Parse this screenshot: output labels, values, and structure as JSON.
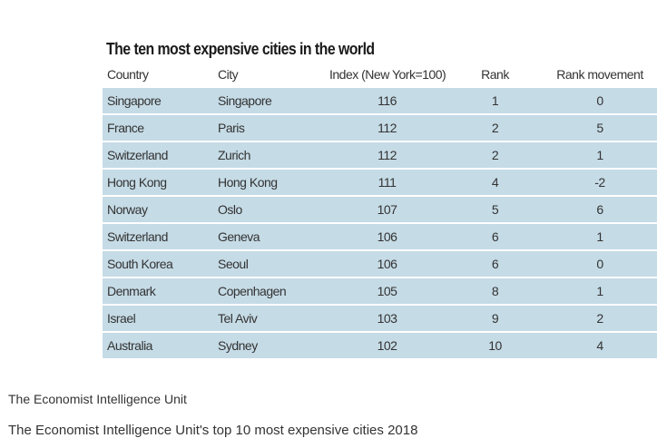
{
  "table": {
    "title": "The ten most expensive cities in the world",
    "headers": [
      "Country",
      "City",
      "Index (New York=100)",
      "Rank",
      "Rank movement"
    ],
    "rows": [
      [
        "Singapore",
        "Singapore",
        "116",
        "1",
        "0"
      ],
      [
        "France",
        "Paris",
        "112",
        "2",
        "5"
      ],
      [
        "Switzerland",
        "Zurich",
        "112",
        "2",
        "1"
      ],
      [
        "Hong Kong",
        "Hong Kong",
        "111",
        "4",
        "-2"
      ],
      [
        "Norway",
        "Oslo",
        "107",
        "5",
        "6"
      ],
      [
        "Switzerland",
        "Geneva",
        "106",
        "6",
        "1"
      ],
      [
        "South Korea",
        "Seoul",
        "106",
        "6",
        "0"
      ],
      [
        "Denmark",
        "Copenhagen",
        "105",
        "8",
        "1"
      ],
      [
        "Israel",
        "Tel Aviv",
        "103",
        "9",
        "2"
      ],
      [
        "Australia",
        "Sydney",
        "102",
        "10",
        "4"
      ]
    ],
    "row_color": "#c5dbe6"
  },
  "source": "The Economist Intelligence Unit",
  "caption": "The Economist Intelligence Unit's top 10 most expensive cities 2018"
}
